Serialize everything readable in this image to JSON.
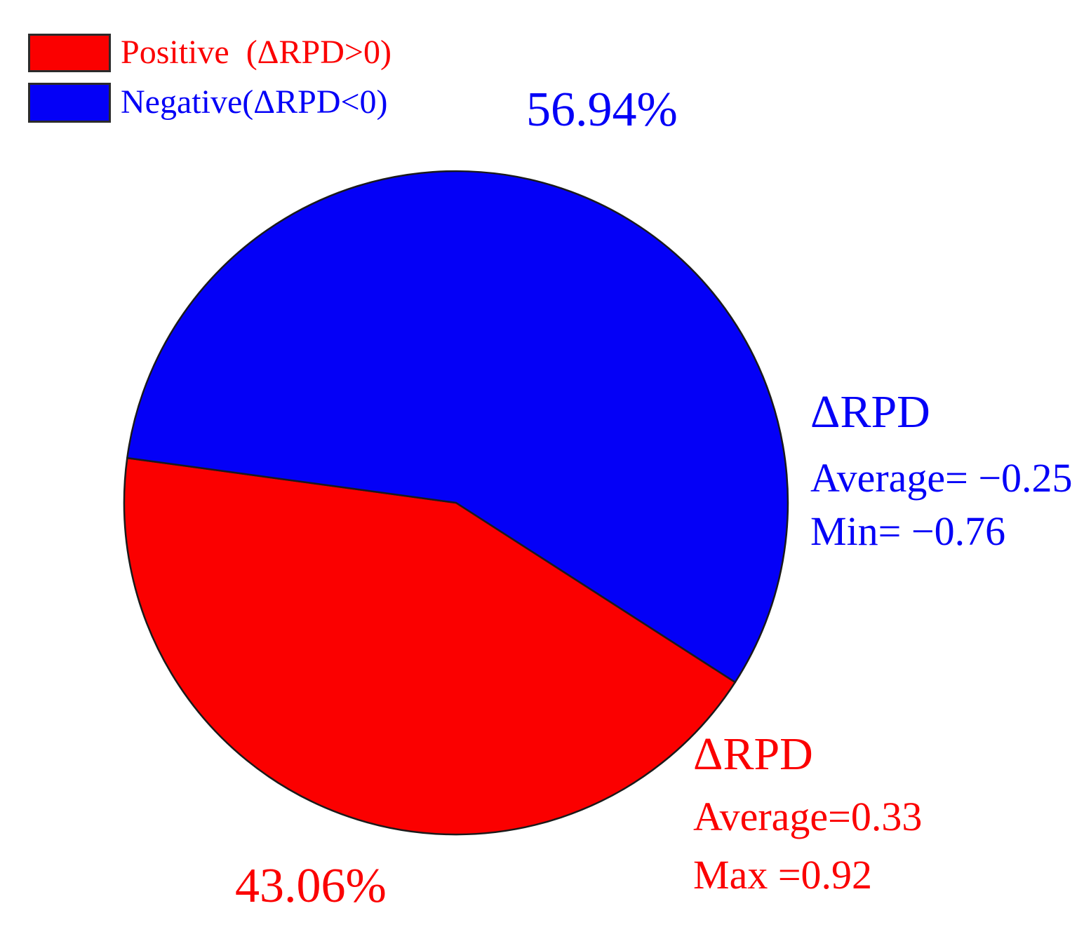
{
  "chart_data": {
    "type": "pie",
    "title": "",
    "slices": [
      {
        "name": "positive",
        "label": "Positive  (ΔRPD>0)",
        "value_pct": 43.06,
        "pct_label": "43.06%",
        "color": "#fb0000"
      },
      {
        "name": "negative",
        "label": "Negative(ΔRPD<0)",
        "value_pct": 56.94,
        "pct_label": "56.94%",
        "color": "#0400f7"
      }
    ],
    "rotation_deg": 32.75,
    "stroke_color": "#1a1a1a",
    "legend_position": "top-left",
    "grid": false
  },
  "legend": {
    "items": [
      {
        "label": "Positive  (ΔRPD>0)"
      },
      {
        "label": "Negative(ΔRPD<0)"
      }
    ]
  },
  "annotations": {
    "negative": {
      "line1": "ΔRPD",
      "line2": "Average= −0.25",
      "line3": "Min= −0.76"
    },
    "positive": {
      "line1": "ΔRPD",
      "line2": "Average=0.33",
      "line3": "Max =0.92"
    }
  }
}
